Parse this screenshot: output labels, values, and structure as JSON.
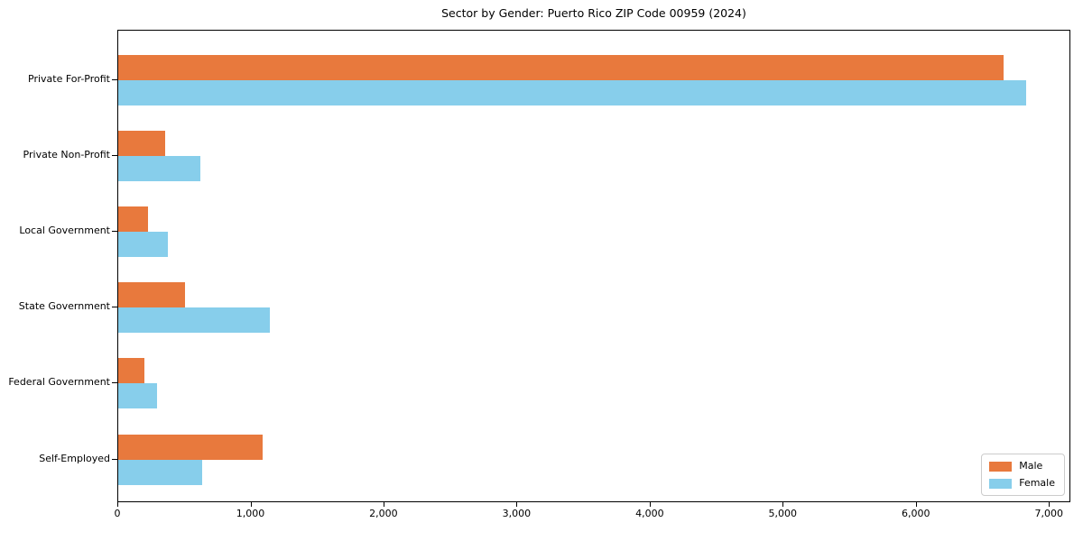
{
  "chart_data": {
    "type": "bar",
    "orientation": "horizontal",
    "title": "Sector by Gender: Puerto Rico ZIP Code 00959 (2024)",
    "categories": [
      "Private For-Profit",
      "Private Non-Profit",
      "Local Government",
      "State Government",
      "Federal Government",
      "Self-Employed"
    ],
    "series": [
      {
        "name": "Male",
        "color": "#e8793d",
        "values": [
          6650,
          350,
          225,
          500,
          195,
          1085
        ]
      },
      {
        "name": "Female",
        "color": "#87ceeb",
        "values": [
          6820,
          620,
          370,
          1140,
          290,
          630
        ]
      }
    ],
    "xlabel": "",
    "ylabel": "",
    "xlim": [
      0,
      7161
    ],
    "x_ticks": [
      0,
      1000,
      2000,
      3000,
      4000,
      5000,
      6000,
      7000
    ],
    "x_tick_labels": [
      "0",
      "1,000",
      "2,000",
      "3,000",
      "4,000",
      "5,000",
      "6,000",
      "7,000"
    ],
    "grid": false,
    "legend_position": "lower right",
    "background": "#ffffff"
  }
}
